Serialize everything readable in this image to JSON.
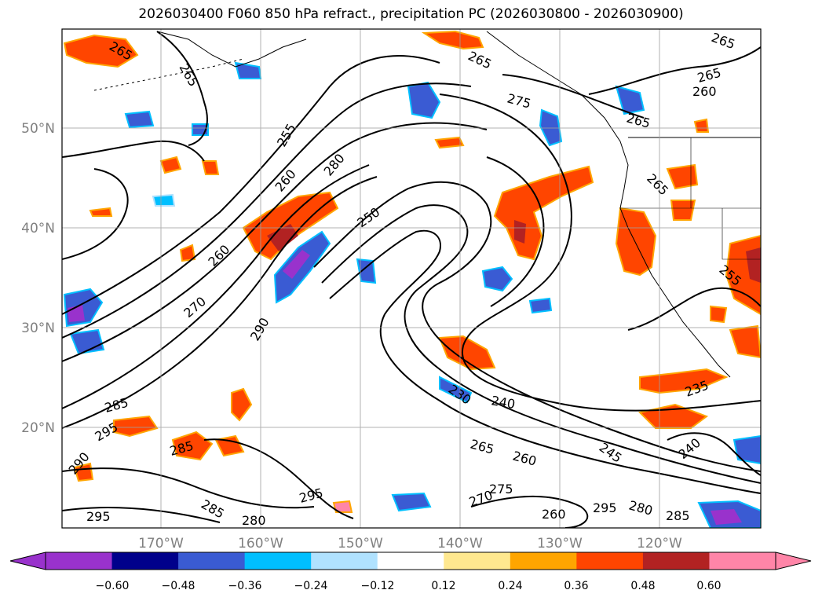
{
  "title": "2026030400 F060 850 hPa refract., precipitation PC (2026030800 - 2026030900)",
  "axes": {
    "lat_labels": [
      "50°N",
      "40°N",
      "30°N",
      "20°N"
    ],
    "lon_labels": [
      "170°W",
      "160°W",
      "150°W",
      "140°W",
      "130°W",
      "120°W"
    ],
    "label_color": "#808080"
  },
  "colorbar": {
    "ticks": [
      "−0.60",
      "−0.48",
      "−0.36",
      "−0.24",
      "−0.12",
      "0.12",
      "0.24",
      "0.36",
      "0.48",
      "0.60"
    ],
    "under_color": "#9932cc",
    "colors": [
      "#00008b",
      "#3a5bd3",
      "#00bfff",
      "#b0e2ff",
      "#ffffff",
      "#ffe88f",
      "#ffa500",
      "#ff4500",
      "#b22222",
      "#ff85a8"
    ],
    "over_color": "#ff85a8"
  },
  "contour_labels": [
    {
      "text": "265"
    },
    {
      "text": "265"
    },
    {
      "text": "265"
    },
    {
      "text": "265"
    },
    {
      "text": "265"
    },
    {
      "text": "260"
    },
    {
      "text": "265"
    },
    {
      "text": "275"
    },
    {
      "text": "255"
    },
    {
      "text": "280"
    },
    {
      "text": "260"
    },
    {
      "text": "250"
    },
    {
      "text": "260"
    },
    {
      "text": "270"
    },
    {
      "text": "290"
    },
    {
      "text": "285"
    },
    {
      "text": "295"
    },
    {
      "text": "290"
    },
    {
      "text": "285"
    },
    {
      "text": "295"
    },
    {
      "text": "285"
    },
    {
      "text": "280"
    },
    {
      "text": "295"
    },
    {
      "text": "270"
    },
    {
      "text": "275"
    },
    {
      "text": "265"
    },
    {
      "text": "260"
    },
    {
      "text": "245"
    },
    {
      "text": "240"
    },
    {
      "text": "235"
    },
    {
      "text": "240"
    },
    {
      "text": "280"
    },
    {
      "text": "285"
    },
    {
      "text": "295"
    },
    {
      "text": "260"
    },
    {
      "text": "255"
    },
    {
      "text": "265"
    },
    {
      "text": "230"
    }
  ]
}
